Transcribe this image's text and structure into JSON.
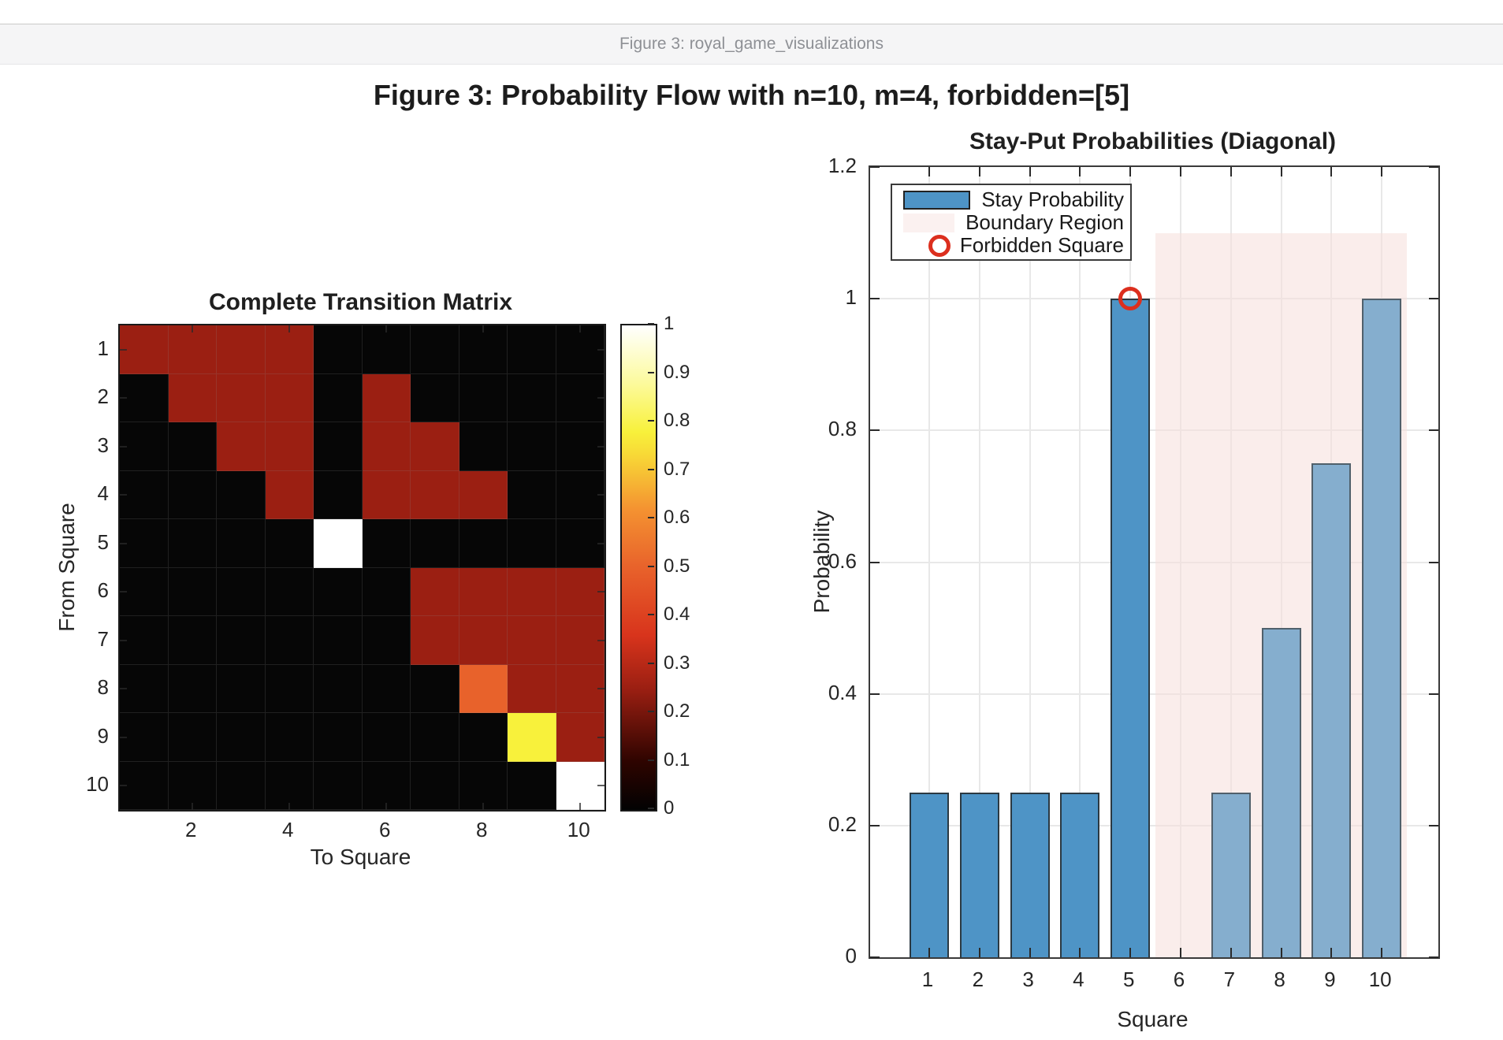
{
  "window": {
    "title": "Figure 3: royal_game_visualizations"
  },
  "figure_title": "Figure 3: Probability Flow with n=10, m=4, forbidden=[5]",
  "colors": {
    "bar_blue": "#4e94c6",
    "bar_blue_edge": "#2b3942",
    "bar_light_blue": "#85aece",
    "bar_light_blue_edge": "#50606b",
    "boundary_pink": "#fbf1f0",
    "forbidden_red": "#dc2f1e",
    "heat_0": "#060606",
    "heat_025": "#9b1f12",
    "heat_05": "#e8622b",
    "heat_075": "#f8f13b",
    "heat_1": "#ffffff"
  },
  "chart_data": [
    {
      "type": "heatmap",
      "title": "Complete Transition Matrix",
      "xlabel": "To Square",
      "ylabel": "From Square",
      "row_ticks": [
        "1",
        "2",
        "3",
        "4",
        "5",
        "6",
        "7",
        "8",
        "9",
        "10"
      ],
      "col_ticks": [
        "2",
        "4",
        "6",
        "8",
        "10"
      ],
      "col_tick_positions": [
        2,
        4,
        6,
        8,
        10
      ],
      "colormap": "hot",
      "colorbar_ticks": [
        "0",
        "0.1",
        "0.2",
        "0.3",
        "0.4",
        "0.5",
        "0.6",
        "0.7",
        "0.8",
        "0.9",
        "1"
      ],
      "colorbar_values": [
        0,
        0.1,
        0.2,
        0.3,
        0.4,
        0.5,
        0.6,
        0.7,
        0.8,
        0.9,
        1
      ],
      "matrix": [
        [
          0.25,
          0.25,
          0.25,
          0.25,
          0,
          0,
          0,
          0,
          0,
          0
        ],
        [
          0,
          0.25,
          0.25,
          0.25,
          0,
          0.25,
          0,
          0,
          0,
          0
        ],
        [
          0,
          0,
          0.25,
          0.25,
          0,
          0.25,
          0.25,
          0,
          0,
          0
        ],
        [
          0,
          0,
          0,
          0.25,
          0,
          0.25,
          0.25,
          0.25,
          0,
          0
        ],
        [
          0,
          0,
          0,
          0,
          1,
          0,
          0,
          0,
          0,
          0
        ],
        [
          0,
          0,
          0,
          0,
          0,
          0,
          0.25,
          0.25,
          0.25,
          0.25
        ],
        [
          0,
          0,
          0,
          0,
          0,
          0,
          0.25,
          0.25,
          0.25,
          0.25
        ],
        [
          0,
          0,
          0,
          0,
          0,
          0,
          0,
          0.5,
          0.25,
          0.25
        ],
        [
          0,
          0,
          0,
          0,
          0,
          0,
          0,
          0,
          0.75,
          0.25
        ],
        [
          0,
          0,
          0,
          0,
          0,
          0,
          0,
          0,
          0,
          1
        ]
      ]
    },
    {
      "type": "bar",
      "title": "Stay-Put Probabilities (Diagonal)",
      "xlabel": "Square",
      "ylabel": "Probability",
      "categories": [
        "1",
        "2",
        "3",
        "4",
        "5",
        "6",
        "7",
        "8",
        "9",
        "10"
      ],
      "values": [
        0.25,
        0.25,
        0.25,
        0.25,
        1.0,
        0,
        0.25,
        0.5,
        0.75,
        1.0
      ],
      "in_boundary": [
        false,
        false,
        false,
        false,
        false,
        true,
        true,
        true,
        true,
        true
      ],
      "ylim": [
        0,
        1.2
      ],
      "y_ticks": [
        "0",
        "0.2",
        "0.4",
        "0.6",
        "0.8",
        "1",
        "1.2"
      ],
      "y_tick_values": [
        0,
        0.2,
        0.4,
        0.6,
        0.8,
        1,
        1.2
      ],
      "grid": true,
      "legend_position": "upper left",
      "legend": [
        {
          "label": "Stay Probability",
          "swatch": "blue-rect"
        },
        {
          "label": "Boundary Region",
          "swatch": "pink-rect"
        },
        {
          "label": "Forbidden Square",
          "swatch": "red-ring"
        }
      ],
      "boundary_region": {
        "x_from": 5.5,
        "x_to": 10.5,
        "y_from": 0,
        "y_to": 1.1
      },
      "forbidden_marker": {
        "x": 5,
        "y": 1.0
      }
    }
  ]
}
